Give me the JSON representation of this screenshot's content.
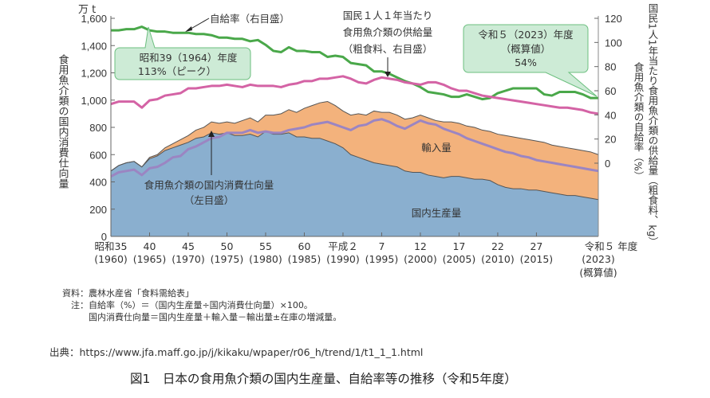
{
  "chart_data": {
    "type": "area",
    "title": "図1　日本の食用魚介類の国内生産量、自給率等の推移（令和5年度）",
    "left_axis": {
      "unit": "万 t",
      "label": "食用魚介類の国内消費仕向量",
      "range": [
        0,
        1600
      ],
      "ticks": [
        "0",
        "200",
        "400",
        "600",
        "800",
        "1,000",
        "1,200",
        "1,400",
        "1,600"
      ],
      "tick_values": [
        0,
        200,
        400,
        600,
        800,
        1000,
        1200,
        1400,
        1600
      ]
    },
    "right_axis": {
      "label_outer": "国民1人1年当たり食用魚介類の供給量（粗食料、kg）",
      "label_inner": "食用魚介類の自給率（%）",
      "range": [
        -60,
        120
      ],
      "ticks": [
        "0",
        "20",
        "40",
        "60",
        "80",
        "100",
        "120"
      ],
      "tick_values": [
        0,
        20,
        40,
        60,
        80,
        100,
        120
      ]
    },
    "x_axis": {
      "range": [
        1960,
        2023
      ],
      "ticks": [
        {
          "year": 1960,
          "era": "昭和35",
          "western": "(1960)"
        },
        {
          "year": 1965,
          "era": "40",
          "western": "(1965)"
        },
        {
          "year": 1970,
          "era": "45",
          "western": "(1970)"
        },
        {
          "year": 1975,
          "era": "50",
          "western": "(1975)"
        },
        {
          "year": 1980,
          "era": "55",
          "western": "(1980)"
        },
        {
          "year": 1985,
          "era": "60",
          "western": "(1985)"
        },
        {
          "year": 1990,
          "era": "平成２",
          "western": "(1990)"
        },
        {
          "year": 1995,
          "era": "7",
          "western": "(1995)"
        },
        {
          "year": 2000,
          "era": "12",
          "western": "(2000)"
        },
        {
          "year": 2005,
          "era": "17",
          "western": "(2005)"
        },
        {
          "year": 2010,
          "era": "22",
          "western": "(2010)"
        },
        {
          "year": 2015,
          "era": "27",
          "western": "(2015)"
        },
        {
          "year": 2023,
          "era": "令和５ 年度",
          "western": "(2023)",
          "extra": "(概算値)"
        }
      ]
    },
    "x": [
      1960,
      1961,
      1962,
      1963,
      1964,
      1965,
      1966,
      1967,
      1968,
      1969,
      1970,
      1971,
      1972,
      1973,
      1974,
      1975,
      1976,
      1977,
      1978,
      1979,
      1980,
      1981,
      1982,
      1983,
      1984,
      1985,
      1986,
      1987,
      1988,
      1989,
      1990,
      1991,
      1992,
      1993,
      1994,
      1995,
      1996,
      1997,
      1998,
      1999,
      2000,
      2001,
      2002,
      2003,
      2004,
      2005,
      2006,
      2007,
      2008,
      2009,
      2010,
      2011,
      2012,
      2013,
      2014,
      2015,
      2016,
      2017,
      2018,
      2019,
      2020,
      2021,
      2022,
      2023
    ],
    "series": [
      {
        "name": "国内生産量",
        "axis": "left",
        "kind": "area",
        "color": "#8aafcf",
        "values": [
          480,
          520,
          540,
          550,
          510,
          570,
          590,
          630,
          650,
          670,
          690,
          720,
          730,
          760,
          750,
          760,
          740,
          740,
          750,
          730,
          770,
          750,
          750,
          760,
          730,
          730,
          720,
          720,
          700,
          680,
          650,
          600,
          580,
          560,
          540,
          530,
          520,
          510,
          480,
          470,
          470,
          450,
          440,
          430,
          440,
          440,
          430,
          420,
          420,
          410,
          380,
          360,
          350,
          350,
          340,
          340,
          330,
          320,
          310,
          300,
          300,
          290,
          280,
          270
        ]
      },
      {
        "name": "輸入量",
        "axis": "left",
        "kind": "stacked-area",
        "color": "#f3b27c",
        "values": [
          0,
          0,
          0,
          0,
          0,
          10,
          10,
          20,
          30,
          40,
          50,
          60,
          70,
          80,
          80,
          80,
          90,
          110,
          120,
          110,
          120,
          140,
          150,
          170,
          180,
          210,
          240,
          260,
          290,
          280,
          270,
          290,
          320,
          330,
          380,
          380,
          390,
          380,
          380,
          400,
          420,
          420,
          410,
          410,
          400,
          390,
          380,
          380,
          360,
          360,
          370,
          380,
          380,
          370,
          370,
          360,
          360,
          350,
          350,
          350,
          340,
          340,
          340,
          330
        ]
      },
      {
        "name": "食用魚介類の国内消費仕向量（左目盛）",
        "axis": "left",
        "kind": "line",
        "color": "#9b85c2",
        "values": [
          440,
          470,
          480,
          490,
          450,
          500,
          510,
          540,
          580,
          590,
          640,
          660,
          690,
          720,
          730,
          760,
          760,
          760,
          780,
          760,
          770,
          760,
          760,
          780,
          790,
          800,
          820,
          830,
          840,
          820,
          800,
          780,
          810,
          820,
          850,
          860,
          840,
          810,
          790,
          820,
          850,
          830,
          820,
          790,
          770,
          750,
          720,
          700,
          680,
          660,
          640,
          620,
          610,
          590,
          580,
          560,
          550,
          540,
          530,
          520,
          510,
          500,
          490,
          480
        ]
      },
      {
        "name": "自給率（右目盛）",
        "axis": "right",
        "kind": "line",
        "color": "#4aa84a",
        "values": [
          110,
          110,
          111,
          111,
          113,
          110,
          109,
          109,
          108,
          108,
          108,
          107,
          107,
          106,
          104,
          104,
          103,
          103,
          101,
          102,
          98,
          93,
          92,
          96,
          93,
          93,
          92,
          92,
          88,
          89,
          88,
          83,
          82,
          81,
          76,
          76,
          74,
          71,
          68,
          66,
          63,
          59,
          58,
          57,
          55,
          55,
          57,
          55,
          53,
          54,
          58,
          60,
          62,
          62,
          62,
          62,
          57,
          56,
          59,
          59,
          59,
          57,
          54,
          54
        ]
      },
      {
        "name": "国民１人１年当たり食用魚介類の供給量（粗食料、右目盛）",
        "axis": "right",
        "kind": "line",
        "color": "#d463a5",
        "values": [
          49,
          51,
          51,
          51,
          46,
          52,
          53,
          56,
          57,
          58,
          62,
          62,
          63,
          64,
          64,
          65,
          64,
          63,
          65,
          64,
          64,
          64,
          63,
          65,
          66,
          68,
          68,
          70,
          70,
          71,
          72,
          70,
          67,
          66,
          69,
          71,
          70,
          69,
          67,
          66,
          65,
          67,
          67,
          65,
          62,
          60,
          60,
          58,
          56,
          55,
          54,
          53,
          52,
          51,
          50,
          49,
          48,
          47,
          46,
          46,
          45,
          44,
          42,
          41
        ]
      }
    ],
    "annotations": {
      "self_sufficiency": "自給率（右目盛）",
      "supply_line1": "国民１人１年当たり",
      "supply_line2": "食用魚介類の供給量",
      "supply_line3": "（粗食料、右目盛）",
      "peak_line1": "昭和39（1964）年度",
      "peak_line2": "113%（ピーク）",
      "latest_line1": "令和５（2023）年度",
      "latest_line2": "（概算値）",
      "latest_line3": "54%",
      "consumption_line1": "食用魚介類の国内消費仕向量",
      "consumption_line2": "（左目盛）",
      "imports": "輸入量",
      "production": "国内生産量"
    }
  },
  "notes": {
    "line1": "資料：農林水産省「食料需給表」",
    "line2": "　注：自給率（%）＝（国内生産量÷国内消費仕向量）×100。",
    "line3": "　　　国内消費仕向量＝国内生産量＋輸入量－輸出量±在庫の増減量。"
  },
  "source": "出典：https://www.jfa.maff.go.jp/j/kikaku/wpaper/r06_h/trend/1/t1_1_1.html",
  "caption": "図1　日本の食用魚介類の国内生産量、自給率等の推移（令和5年度）"
}
